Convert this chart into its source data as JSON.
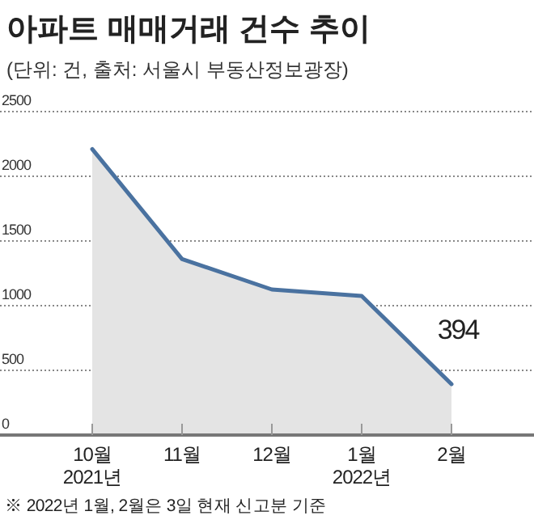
{
  "chart_data": {
    "type": "area",
    "title": "아파트 매매거래 건수 추이",
    "subtitle": "(단위: 건, 출처: 서울시 부동산정보광장)",
    "categories": [
      "10월\n2021년",
      "11월",
      "12월",
      "1월\n2022년",
      "2월"
    ],
    "series": [
      {
        "color": "#4a72a0",
        "values": [
          2210,
          1360,
          1125,
          1075,
          394
        ],
        "value_labels": [
          null,
          null,
          null,
          null,
          "394"
        ]
      }
    ],
    "ylim": [
      0,
      2500
    ],
    "yticks": [
      0,
      500,
      1000,
      1500,
      2000,
      2500
    ],
    "grid": "y",
    "annotations": [
      "※ 2022년 1월, 2월은 3일 현재 신고분 기준"
    ]
  }
}
